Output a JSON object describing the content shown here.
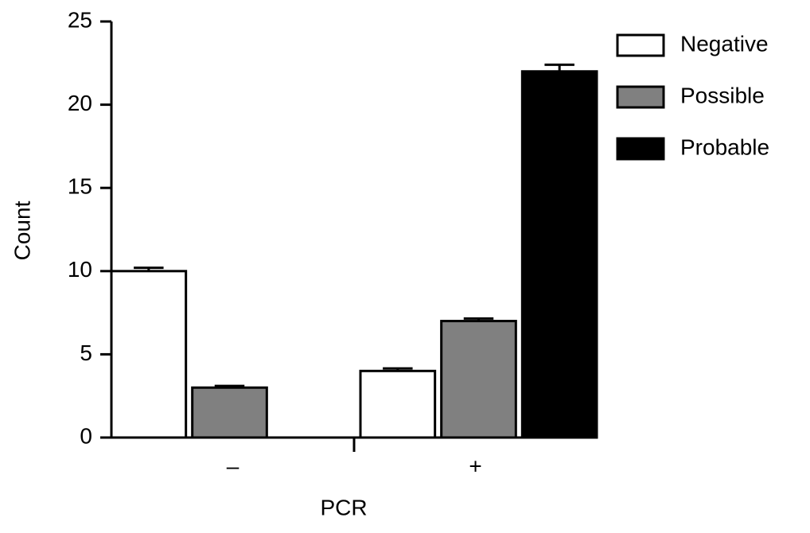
{
  "chart_data": {
    "type": "bar",
    "x_label": "PCR",
    "y_label": "Count",
    "categories": [
      "–",
      "+"
    ],
    "series": [
      {
        "name": "Negative",
        "color": "#ffffff",
        "values": [
          10,
          4
        ],
        "errors": [
          0.2,
          0.15
        ]
      },
      {
        "name": "Possible",
        "color": "#808080",
        "values": [
          3,
          7
        ],
        "errors": [
          0.1,
          0.15
        ]
      },
      {
        "name": "Probable",
        "color": "#000000",
        "values": [
          0,
          22
        ],
        "errors": [
          null,
          0.4
        ]
      }
    ],
    "ylim": [
      0,
      25
    ],
    "yticks": [
      0,
      5,
      10,
      15,
      20,
      25
    ],
    "grid": false,
    "legend": "right"
  }
}
